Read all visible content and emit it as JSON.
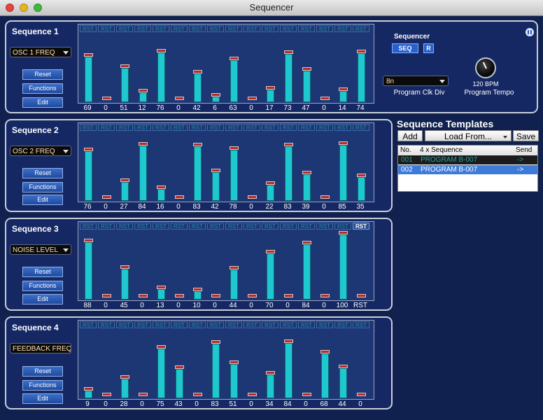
{
  "window": {
    "title": "Sequencer"
  },
  "common": {
    "reset_label": "Reset",
    "functions_label": "Functions",
    "edit_label": "Edit",
    "rst_label": "RST"
  },
  "sequences": [
    {
      "title": "Sequence 1",
      "param": "OSC 1 FREQ",
      "values": [
        69,
        0,
        51,
        12,
        76,
        0,
        42,
        6,
        63,
        0,
        17,
        73,
        47,
        0,
        14,
        74
      ],
      "labels": [
        "69",
        "0",
        "51",
        "12",
        "76",
        "0",
        "42",
        "6",
        "63",
        "0",
        "17",
        "73",
        "47",
        "0",
        "14",
        "74"
      ],
      "active_rst": -1
    },
    {
      "title": "Sequence 2",
      "param": "OSC 2 FREQ",
      "values": [
        76,
        0,
        27,
        84,
        16,
        0,
        83,
        42,
        78,
        0,
        22,
        83,
        39,
        0,
        85,
        35
      ],
      "labels": [
        "76",
        "0",
        "27",
        "84",
        "16",
        "0",
        "83",
        "42",
        "78",
        "0",
        "22",
        "83",
        "39",
        "0",
        "85",
        "35"
      ],
      "active_rst": -1
    },
    {
      "title": "Sequence 3",
      "param": "NOISE LEVEL",
      "values": [
        88,
        0,
        45,
        0,
        13,
        0,
        10,
        0,
        44,
        0,
        70,
        0,
        84,
        0,
        100,
        0
      ],
      "labels": [
        "88",
        "0",
        "45",
        "0",
        "13",
        "0",
        "10",
        "0",
        "44",
        "0",
        "70",
        "0",
        "84",
        "0",
        "100",
        "RST"
      ],
      "active_rst": 15
    },
    {
      "title": "Sequence 4",
      "param": "FEEDBACK FREQ",
      "values": [
        9,
        0,
        28,
        0,
        75,
        43,
        0,
        83,
        51,
        0,
        34,
        84,
        0,
        68,
        44,
        0
      ],
      "labels": [
        "9",
        "0",
        "28",
        "0",
        "75",
        "43",
        "0",
        "83",
        "51",
        "0",
        "34",
        "84",
        "0",
        "68",
        "44",
        "0"
      ],
      "active_rst": -1
    }
  ],
  "sequencer": {
    "label": "Sequencer",
    "seq_button": "SEQ",
    "r_button": "R",
    "clock_div": "8n",
    "clock_div_label": "Program Clk Div",
    "tempo_value": "120 BPM",
    "tempo_label": "Program Tempo"
  },
  "templates": {
    "title": "Sequence Templates",
    "add_label": "Add",
    "load_label": "Load From...",
    "save_label": "Save",
    "columns": [
      "No.",
      "4 x Sequence",
      "Send"
    ],
    "rows": [
      {
        "no": "001",
        "name": "PROGRAM B-007",
        "send": "->"
      },
      {
        "no": "002",
        "name": "PROGRAM B-007",
        "send": "->"
      }
    ]
  },
  "colors": {
    "bar": "#1fc8d0",
    "bar_cap": "#b02e2e",
    "panel": "#152864",
    "chart_bg": "#1c3774"
  }
}
